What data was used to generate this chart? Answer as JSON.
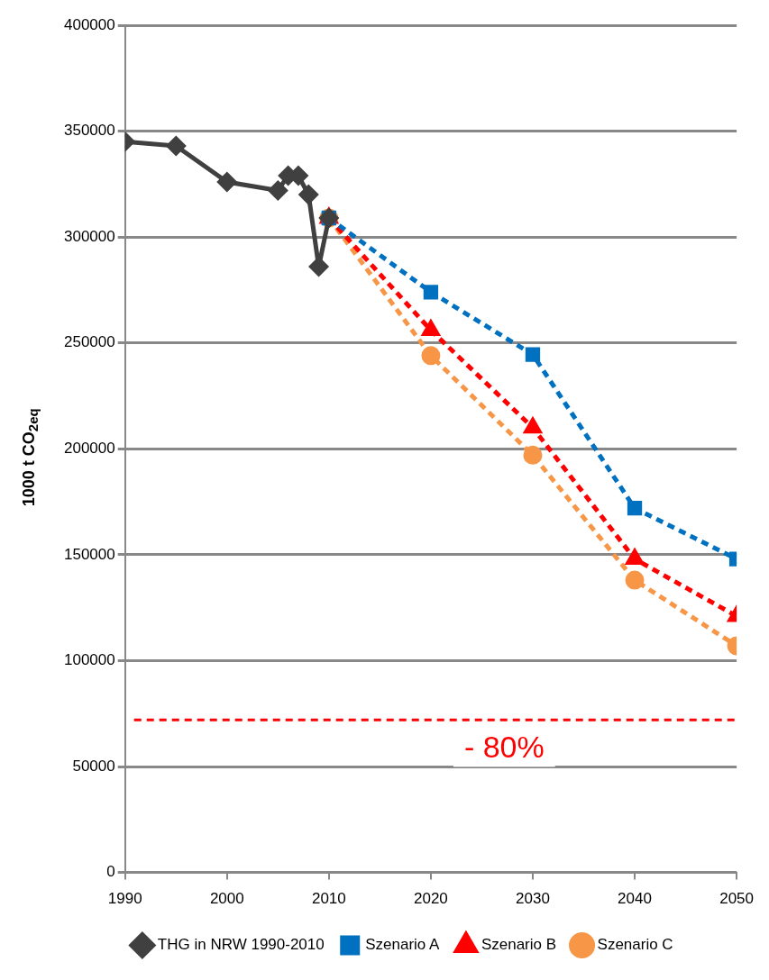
{
  "chart_data": {
    "type": "line",
    "ylabel": "1000 t CO$_{2eq}$",
    "xlim": [
      1990,
      2050
    ],
    "xticks": [
      1990,
      2000,
      2010,
      2020,
      2030,
      2040,
      2050
    ],
    "ylim": [
      0,
      400000
    ],
    "yticks": [
      0,
      50000,
      100000,
      150000,
      200000,
      250000,
      300000,
      350000,
      400000
    ],
    "grid": "y",
    "legend": "bottom",
    "series": [
      {
        "name": "THG in NRW 1990-2010",
        "color": "#404040",
        "marker": "diamond",
        "line_style": "solid",
        "x": [
          1990,
          1995,
          2000,
          2005,
          2006,
          2007,
          2008,
          2009,
          2010
        ],
        "values": [
          345000,
          343000,
          326000,
          322000,
          329000,
          329000,
          320000,
          286000,
          309000
        ]
      },
      {
        "name": "Szenario A",
        "color": "#0070c0",
        "marker": "square",
        "line_style": "dashed",
        "x": [
          2010,
          2020,
          2030,
          2040,
          2050
        ],
        "values": [
          309000,
          274000,
          244500,
          172000,
          148000
        ]
      },
      {
        "name": "Szenario B",
        "color": "#ff0000",
        "marker": "triangle",
        "line_style": "dashed",
        "x": [
          2010,
          2020,
          2030,
          2040,
          2050
        ],
        "values": [
          309000,
          256000,
          210000,
          148000,
          121000
        ]
      },
      {
        "name": "Szenario C",
        "color": "#f79646",
        "marker": "circle",
        "line_style": "dashed",
        "x": [
          2010,
          2020,
          2030,
          2040,
          2050
        ],
        "values": [
          309000,
          244000,
          197000,
          138000,
          107000
        ]
      }
    ],
    "ref_lines": [
      {
        "axis": "y",
        "value": 72000,
        "color": "#ff0000",
        "line_style": "dashed"
      }
    ],
    "annotations": [
      "- 80%"
    ]
  }
}
